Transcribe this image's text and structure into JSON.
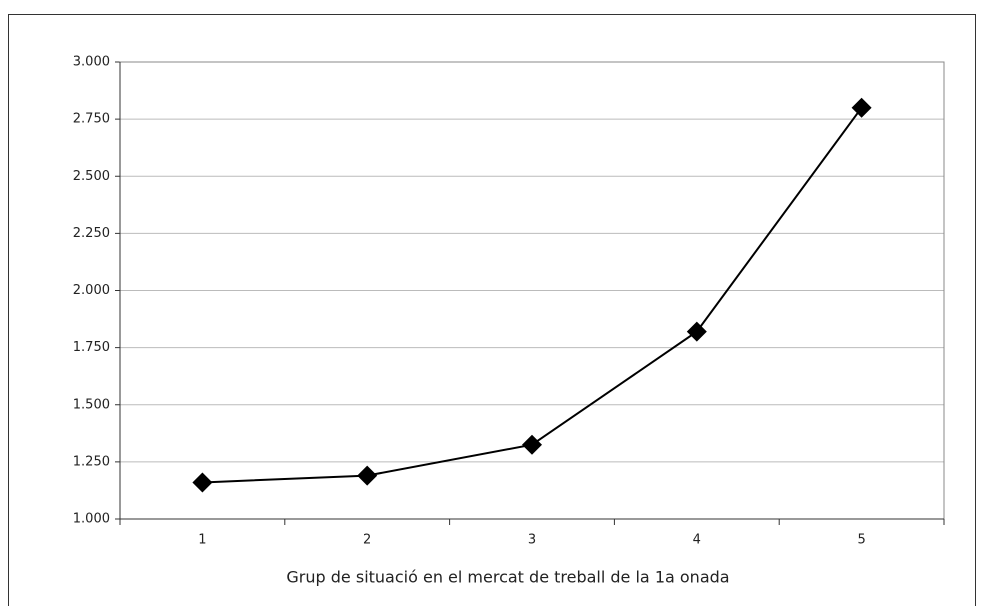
{
  "chart_data": {
    "type": "line",
    "x_label": "Grup de situació en el mercat de treball de la 1a onada",
    "categories": [
      "1",
      "2",
      "3",
      "4",
      "5"
    ],
    "values": [
      1160,
      1190,
      1325,
      1820,
      2800
    ],
    "color": "#000000",
    "ylim": [
      1000,
      3000
    ],
    "yticks": [
      {
        "value": 1000,
        "label": "1.000"
      },
      {
        "value": 1250,
        "label": "1.250"
      },
      {
        "value": 1500,
        "label": "1.500"
      },
      {
        "value": 1750,
        "label": "1.750"
      },
      {
        "value": 2000,
        "label": "2.000"
      },
      {
        "value": 2250,
        "label": "2.250"
      },
      {
        "value": 2500,
        "label": "2.500"
      },
      {
        "value": 2750,
        "label": "2.750"
      },
      {
        "value": 3000,
        "label": "3.000"
      }
    ],
    "grid": true
  }
}
